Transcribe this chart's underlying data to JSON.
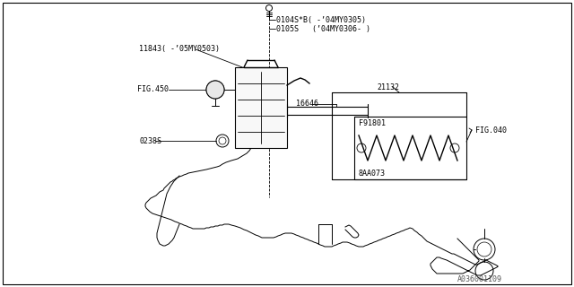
{
  "bg_color": "#ffffff",
  "line_color": "#000000",
  "fig_width": 6.4,
  "fig_height": 3.2,
  "dpi": 100,
  "labels": {
    "part1": "0104S*B( -’04MY0305)",
    "part2": "0105S   (’04MY0306- )",
    "part3": "11843( -’05MY0503)",
    "part4": "FIG.450",
    "part5": "16646",
    "part6": "21132",
    "part7": "F91801",
    "part8": "FIG.040",
    "part9": "8AA073",
    "part10": "0238S",
    "watermark": "A036001109"
  },
  "small_font": 6.0,
  "label_font": 6.5
}
